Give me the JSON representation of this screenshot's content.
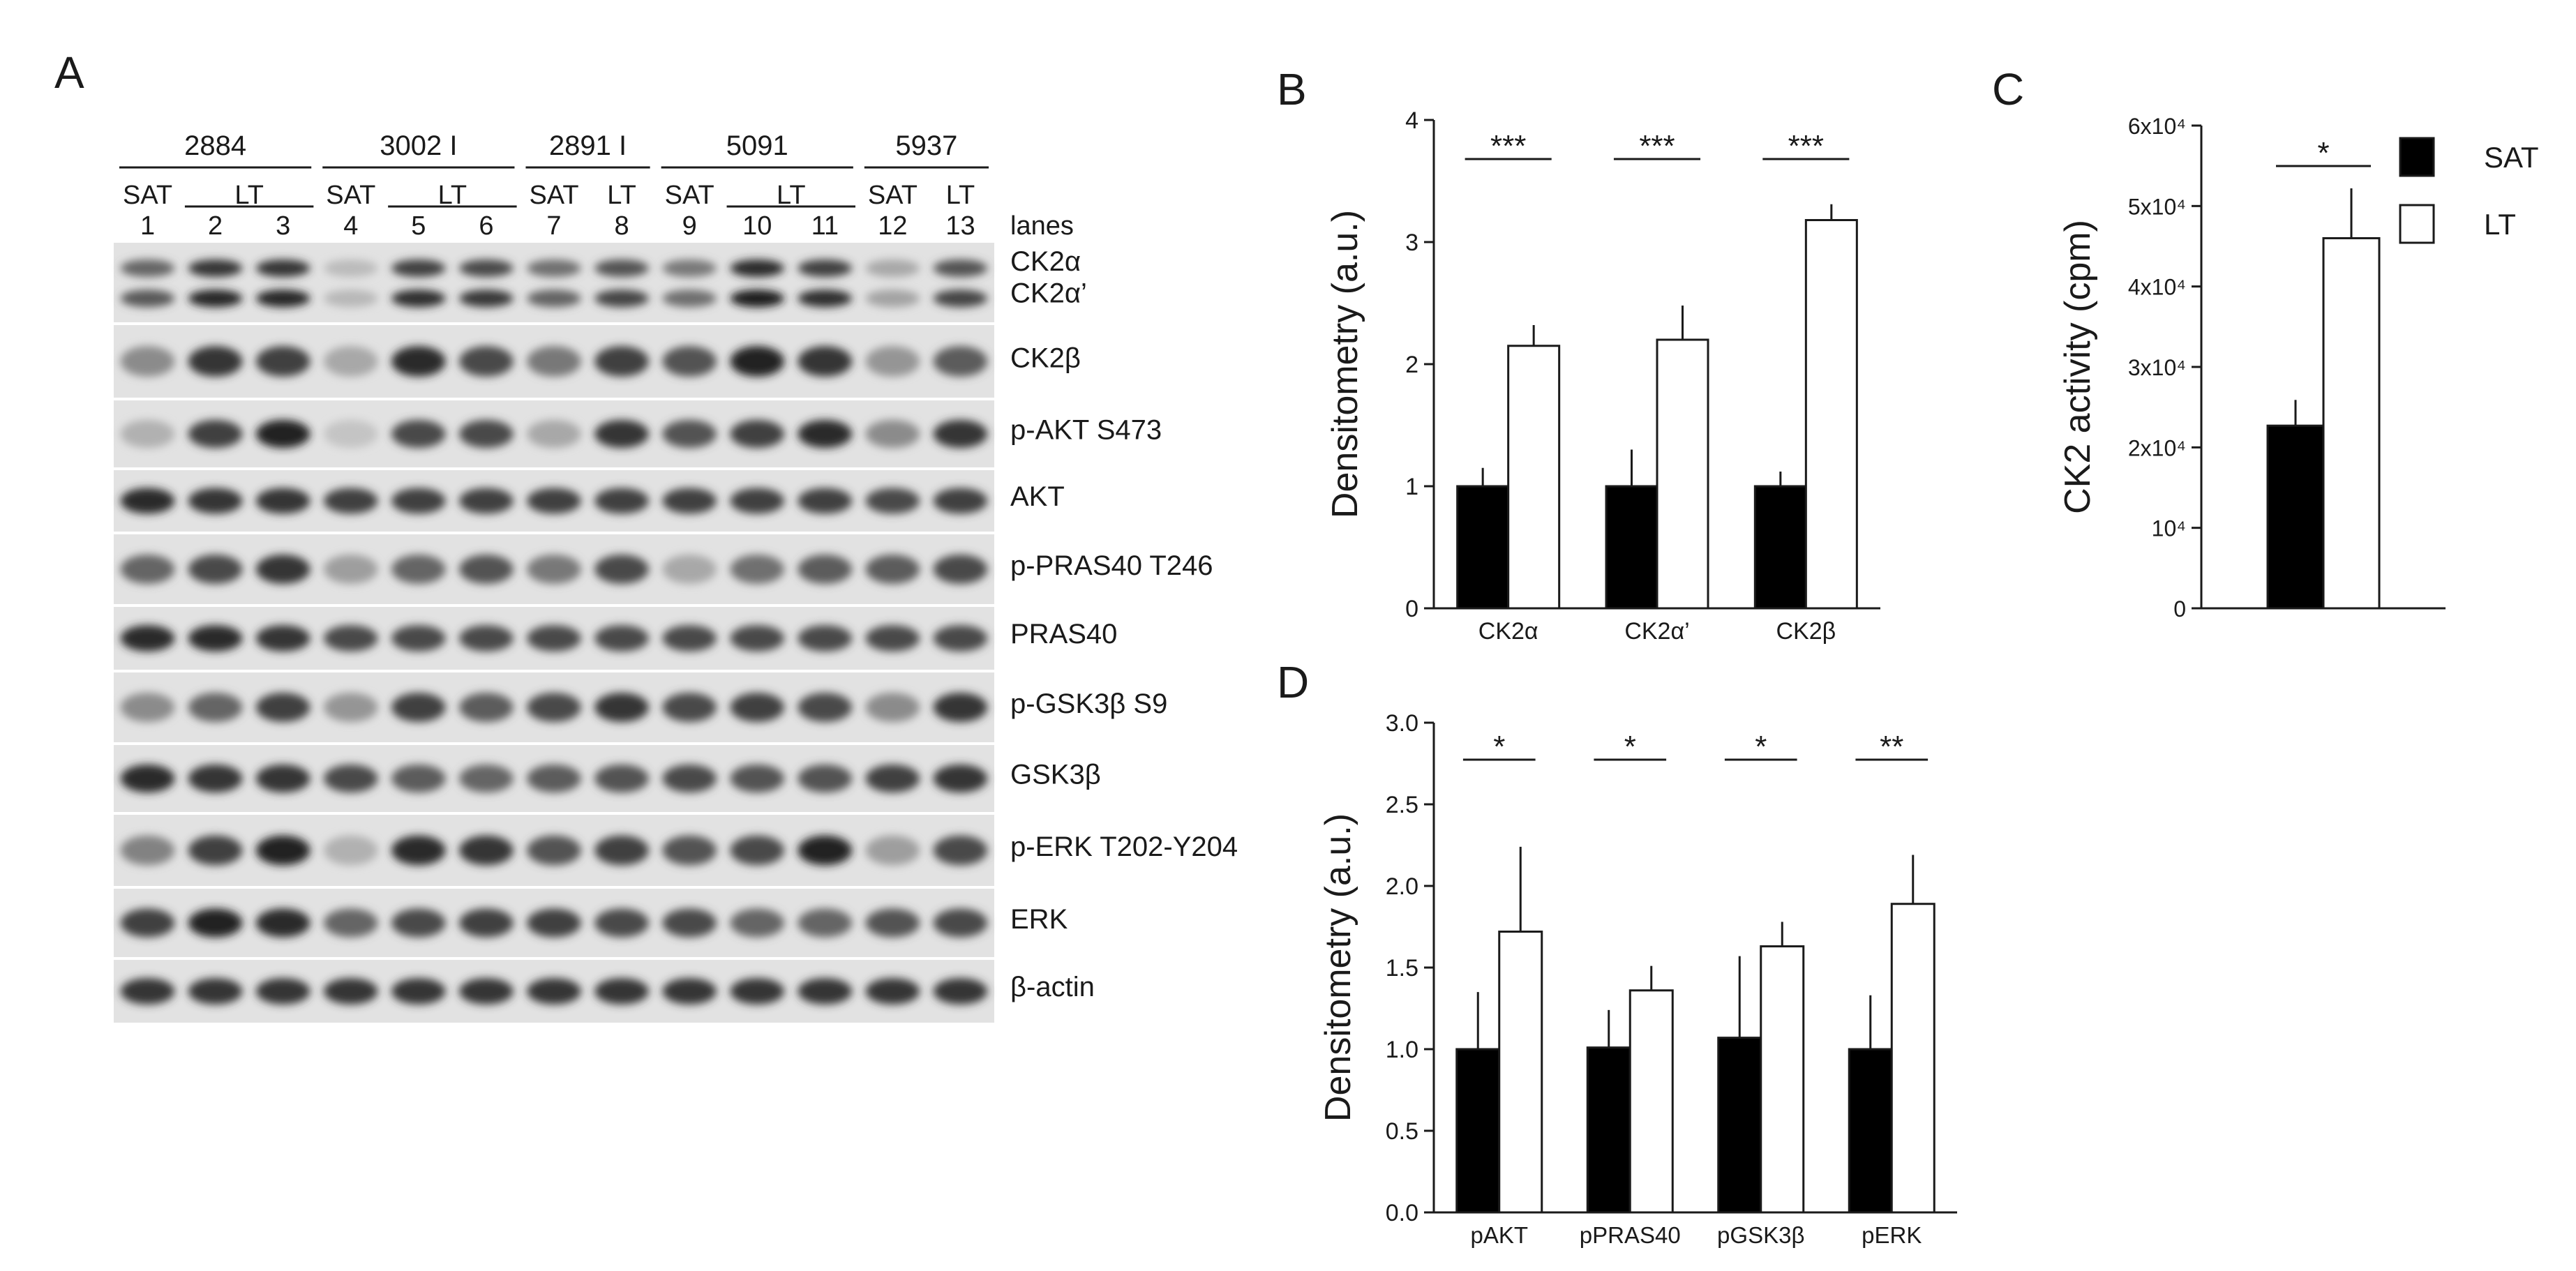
{
  "panel_a": {
    "letter": "A",
    "patient_groups": [
      {
        "id": "2884",
        "lanes": 3
      },
      {
        "id": "3002 I",
        "lanes": 3
      },
      {
        "id": "2891 I",
        "lanes": 2
      },
      {
        "id": "5091",
        "lanes": 3
      },
      {
        "id": "5937",
        "lanes": 2
      }
    ],
    "lanes": [
      {
        "type": "SAT",
        "num": "1"
      },
      {
        "type": "LT",
        "num": "2"
      },
      {
        "type": "",
        "num": "3"
      },
      {
        "type": "SAT",
        "num": "4"
      },
      {
        "type": "LT",
        "num": "5"
      },
      {
        "type": "",
        "num": "6"
      },
      {
        "type": "SAT",
        "num": "7"
      },
      {
        "type": "LT",
        "num": "8"
      },
      {
        "type": "SAT",
        "num": "9"
      },
      {
        "type": "LT",
        "num": "10"
      },
      {
        "type": "",
        "num": "11"
      },
      {
        "type": "SAT",
        "num": "12"
      },
      {
        "type": "LT",
        "num": "13"
      }
    ],
    "lanes_label": "lanes",
    "blots": [
      {
        "labels": [
          "CK2α",
          "CK2α’"
        ],
        "intensity": [
          0.6,
          0.85,
          0.85,
          0.15,
          0.8,
          0.75,
          0.55,
          0.7,
          0.5,
          0.9,
          0.8,
          0.25,
          0.7
        ]
      },
      {
        "labels": [
          "CK2β"
        ],
        "intensity": [
          0.4,
          0.85,
          0.8,
          0.25,
          0.9,
          0.75,
          0.5,
          0.8,
          0.7,
          0.95,
          0.85,
          0.35,
          0.65
        ]
      },
      {
        "labels": [
          "p-AKT S473"
        ],
        "intensity": [
          0.2,
          0.8,
          0.95,
          0.1,
          0.75,
          0.75,
          0.25,
          0.85,
          0.7,
          0.8,
          0.9,
          0.4,
          0.85
        ]
      },
      {
        "labels": [
          "AKT"
        ],
        "intensity": [
          0.9,
          0.85,
          0.85,
          0.8,
          0.8,
          0.8,
          0.8,
          0.8,
          0.8,
          0.8,
          0.8,
          0.75,
          0.8
        ]
      },
      {
        "labels": [
          "p-PRAS40 T246"
        ],
        "intensity": [
          0.6,
          0.75,
          0.85,
          0.3,
          0.6,
          0.7,
          0.5,
          0.75,
          0.25,
          0.55,
          0.65,
          0.65,
          0.75
        ]
      },
      {
        "labels": [
          "PRAS40"
        ],
        "intensity": [
          0.9,
          0.9,
          0.85,
          0.75,
          0.75,
          0.75,
          0.75,
          0.75,
          0.75,
          0.75,
          0.75,
          0.75,
          0.75
        ]
      },
      {
        "labels": [
          "p-GSK3β S9"
        ],
        "intensity": [
          0.4,
          0.6,
          0.8,
          0.35,
          0.8,
          0.65,
          0.75,
          0.85,
          0.75,
          0.8,
          0.75,
          0.4,
          0.85
        ]
      },
      {
        "labels": [
          "GSK3β"
        ],
        "intensity": [
          0.9,
          0.85,
          0.85,
          0.75,
          0.65,
          0.6,
          0.65,
          0.7,
          0.75,
          0.7,
          0.7,
          0.8,
          0.85
        ]
      },
      {
        "labels": [
          "p-ERK T202-Y204"
        ],
        "intensity": [
          0.45,
          0.8,
          0.95,
          0.2,
          0.9,
          0.85,
          0.7,
          0.8,
          0.7,
          0.75,
          0.95,
          0.3,
          0.75
        ]
      },
      {
        "labels": [
          "ERK"
        ],
        "intensity": [
          0.8,
          0.95,
          0.9,
          0.6,
          0.75,
          0.8,
          0.8,
          0.75,
          0.75,
          0.6,
          0.6,
          0.7,
          0.75
        ]
      },
      {
        "labels": [
          "β-actin"
        ],
        "intensity": [
          0.85,
          0.85,
          0.85,
          0.85,
          0.85,
          0.85,
          0.85,
          0.85,
          0.85,
          0.85,
          0.85,
          0.85,
          0.85
        ]
      }
    ]
  },
  "panel_b": {
    "letter": "B"
  },
  "panel_c": {
    "letter": "C"
  },
  "panel_d": {
    "letter": "D"
  },
  "legend": {
    "items": [
      {
        "label": "SAT",
        "color": "#000000"
      },
      {
        "label": "LT",
        "color": "#ffffff"
      }
    ]
  },
  "chart_data": [
    {
      "panel": "B",
      "type": "bar",
      "ylabel": "Densitometry (a.u.)",
      "ylim": [
        0,
        4
      ],
      "yticks": [
        "0",
        "1",
        "2",
        "3",
        "4"
      ],
      "categories": [
        "CK2α",
        "CK2α’",
        "CK2β"
      ],
      "series": [
        {
          "name": "SAT",
          "values": [
            1.0,
            1.0,
            1.0
          ],
          "errors": [
            0.15,
            0.3,
            0.12
          ],
          "color": "#000000"
        },
        {
          "name": "LT",
          "values": [
            2.15,
            2.2,
            3.18
          ],
          "errors": [
            0.17,
            0.28,
            0.13
          ],
          "color": "#ffffff"
        }
      ],
      "significance": [
        "***",
        "***",
        "***"
      ]
    },
    {
      "panel": "C",
      "type": "bar",
      "ylabel": "CK2 activity (cpm)",
      "ylim": [
        0,
        60000
      ],
      "yticks": [
        "0",
        "10⁴",
        "2x10⁴",
        "3x10⁴",
        "4x10⁴",
        "5x10⁴",
        "6x10⁴"
      ],
      "categories": [
        ""
      ],
      "series": [
        {
          "name": "SAT",
          "values": [
            22700
          ],
          "errors": [
            3200
          ],
          "color": "#000000"
        },
        {
          "name": "LT",
          "values": [
            46000
          ],
          "errors": [
            6200
          ],
          "color": "#ffffff"
        }
      ],
      "significance": [
        "*"
      ]
    },
    {
      "panel": "D",
      "type": "bar",
      "ylabel": "Densitometry (a.u.)",
      "ylim": [
        0,
        3.0
      ],
      "yticks": [
        "0.0",
        "0.5",
        "1.0",
        "1.5",
        "2.0",
        "2.5",
        "3.0"
      ],
      "categories": [
        "pAKT",
        "pPRAS40",
        "pGSK3β",
        "pERK"
      ],
      "series": [
        {
          "name": "SAT",
          "values": [
            1.0,
            1.01,
            1.07,
            1.0
          ],
          "errors": [
            0.35,
            0.23,
            0.5,
            0.33
          ],
          "color": "#000000"
        },
        {
          "name": "LT",
          "values": [
            1.72,
            1.36,
            1.63,
            1.89
          ],
          "errors": [
            0.52,
            0.15,
            0.15,
            0.3
          ],
          "color": "#ffffff"
        }
      ],
      "significance": [
        "*",
        "*",
        "*",
        "**"
      ]
    }
  ]
}
